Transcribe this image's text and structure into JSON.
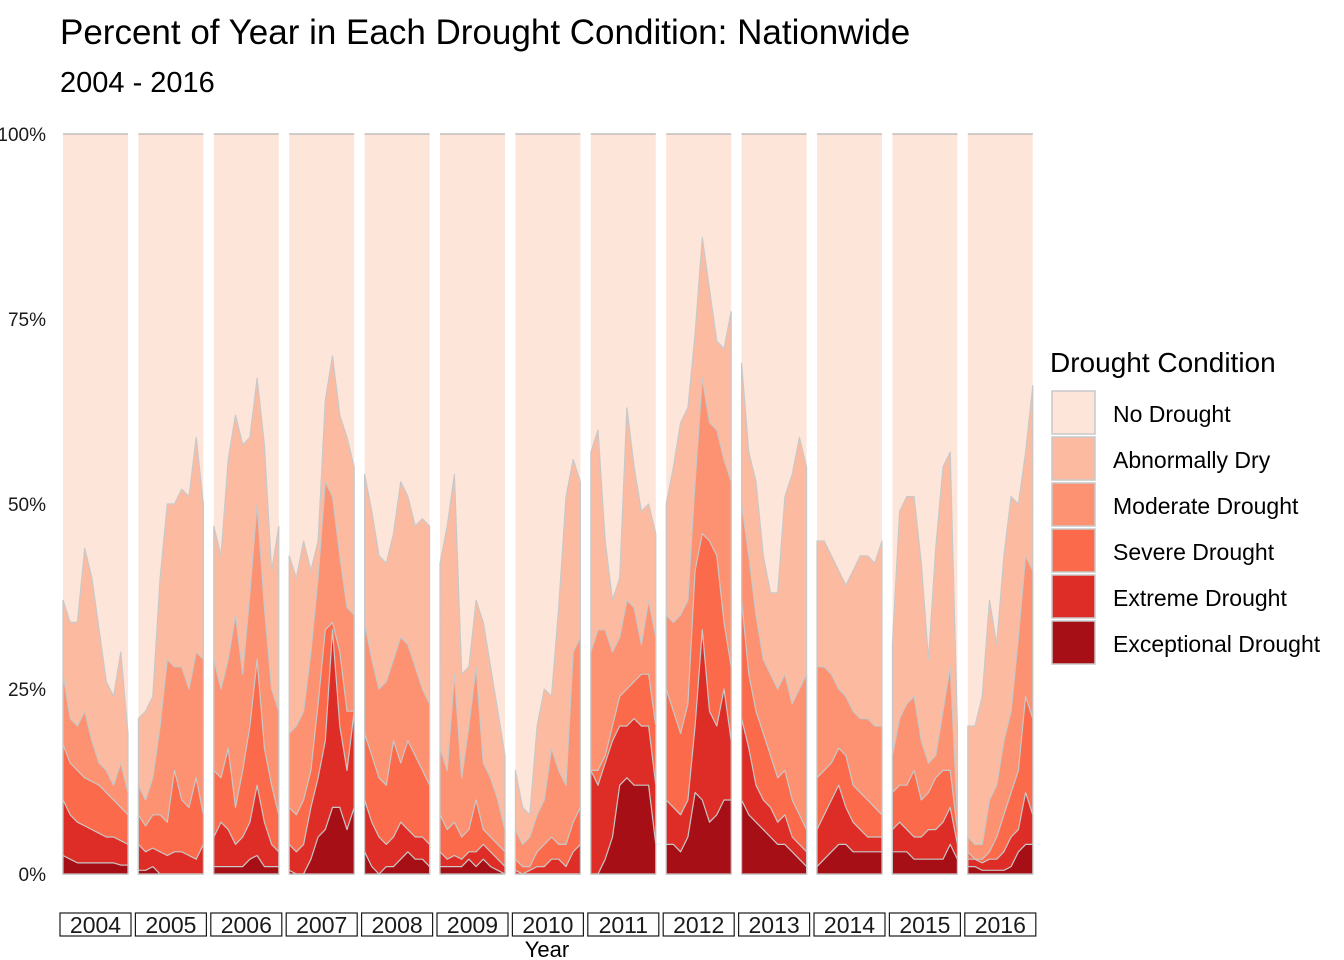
{
  "chart_data": {
    "type": "area",
    "title": "Percent of Year in Each Drought Condition: Nationwide",
    "subtitle": "2004 - 2016",
    "xlabel": "Year",
    "ylabel": "",
    "ylim": [
      0,
      1
    ],
    "y_ticks": [
      "0%",
      "25%",
      "50%",
      "75%",
      "100%"
    ],
    "grid": false,
    "legend_position": "right",
    "legend_title": "Drought Condition",
    "stacked": true,
    "facet_by": "year",
    "years": [
      "2004",
      "2005",
      "2006",
      "2007",
      "2008",
      "2009",
      "2010",
      "2011",
      "2012",
      "2013",
      "2014",
      "2015",
      "2016"
    ],
    "series": [
      {
        "name": "No Drought",
        "color": "#FEE5D9"
      },
      {
        "name": "Abnormally Dry",
        "color": "#FCBBA1"
      },
      {
        "name": "Moderate Drought",
        "color": "#FC9272"
      },
      {
        "name": "Severe Drought",
        "color": "#FB6A4A"
      },
      {
        "name": "Extreme Drought",
        "color": "#DE2D26"
      },
      {
        "name": "Exceptional Drought",
        "color": "#A50F15"
      }
    ],
    "panels": [
      {
        "year": "2004",
        "d4": [
          0.025,
          0.02,
          0.015,
          0.015,
          0.015,
          0.015,
          0.015,
          0.015,
          0.012,
          0.012
        ],
        "d3": [
          0.1,
          0.08,
          0.07,
          0.065,
          0.06,
          0.055,
          0.05,
          0.05,
          0.045,
          0.04
        ],
        "d2": [
          0.175,
          0.15,
          0.14,
          0.13,
          0.125,
          0.12,
          0.11,
          0.1,
          0.09,
          0.08
        ],
        "d1": [
          0.27,
          0.21,
          0.2,
          0.22,
          0.18,
          0.15,
          0.14,
          0.12,
          0.15,
          0.11
        ],
        "d0": [
          0.37,
          0.34,
          0.34,
          0.44,
          0.4,
          0.33,
          0.26,
          0.24,
          0.3,
          0.19
        ]
      },
      {
        "year": "2005",
        "d4": [
          0.005,
          0.005,
          0.01,
          0.0,
          0.0,
          0.0,
          0.0,
          0.0,
          0.0,
          0.0
        ],
        "d3": [
          0.04,
          0.03,
          0.035,
          0.03,
          0.025,
          0.03,
          0.03,
          0.025,
          0.02,
          0.04
        ],
        "d2": [
          0.08,
          0.065,
          0.08,
          0.08,
          0.07,
          0.14,
          0.1,
          0.09,
          0.13,
          0.08
        ],
        "d1": [
          0.12,
          0.1,
          0.13,
          0.2,
          0.29,
          0.28,
          0.28,
          0.25,
          0.3,
          0.29
        ],
        "d0": [
          0.21,
          0.22,
          0.24,
          0.4,
          0.5,
          0.5,
          0.52,
          0.51,
          0.59,
          0.5
        ]
      },
      {
        "year": "2006",
        "d4": [
          0.01,
          0.01,
          0.01,
          0.01,
          0.01,
          0.02,
          0.025,
          0.01,
          0.01,
          0.01
        ],
        "d3": [
          0.05,
          0.07,
          0.06,
          0.04,
          0.05,
          0.07,
          0.12,
          0.07,
          0.04,
          0.03
        ],
        "d2": [
          0.14,
          0.13,
          0.17,
          0.09,
          0.14,
          0.2,
          0.29,
          0.17,
          0.12,
          0.08
        ],
        "d1": [
          0.29,
          0.25,
          0.29,
          0.35,
          0.27,
          0.38,
          0.5,
          0.36,
          0.25,
          0.22
        ],
        "d0": [
          0.47,
          0.43,
          0.56,
          0.62,
          0.58,
          0.59,
          0.67,
          0.58,
          0.41,
          0.47
        ]
      },
      {
        "year": "2007",
        "d4": [
          0.005,
          0.0,
          0.0,
          0.02,
          0.05,
          0.06,
          0.09,
          0.09,
          0.06,
          0.09
        ],
        "d3": [
          0.04,
          0.03,
          0.04,
          0.09,
          0.13,
          0.18,
          0.33,
          0.2,
          0.14,
          0.22
        ],
        "d2": [
          0.09,
          0.08,
          0.1,
          0.14,
          0.23,
          0.33,
          0.34,
          0.3,
          0.22,
          0.22
        ],
        "d1": [
          0.19,
          0.2,
          0.22,
          0.3,
          0.4,
          0.53,
          0.51,
          0.43,
          0.36,
          0.35
        ],
        "d0": [
          0.43,
          0.4,
          0.45,
          0.41,
          0.45,
          0.64,
          0.7,
          0.62,
          0.59,
          0.55
        ]
      },
      {
        "year": "2008",
        "d4": [
          0.03,
          0.01,
          0.0,
          0.01,
          0.01,
          0.02,
          0.03,
          0.02,
          0.02,
          0.01
        ],
        "d3": [
          0.1,
          0.07,
          0.05,
          0.04,
          0.05,
          0.07,
          0.06,
          0.05,
          0.05,
          0.04
        ],
        "d2": [
          0.19,
          0.16,
          0.13,
          0.12,
          0.18,
          0.15,
          0.18,
          0.16,
          0.14,
          0.12
        ],
        "d1": [
          0.34,
          0.29,
          0.25,
          0.26,
          0.29,
          0.32,
          0.31,
          0.28,
          0.25,
          0.23
        ],
        "d0": [
          0.54,
          0.49,
          0.43,
          0.42,
          0.46,
          0.53,
          0.51,
          0.47,
          0.48,
          0.47
        ]
      },
      {
        "year": "2009",
        "d4": [
          0.01,
          0.01,
          0.01,
          0.01,
          0.02,
          0.01,
          0.02,
          0.01,
          0.005,
          0.0
        ],
        "d3": [
          0.03,
          0.02,
          0.025,
          0.02,
          0.03,
          0.03,
          0.04,
          0.03,
          0.02,
          0.01
        ],
        "d2": [
          0.08,
          0.06,
          0.07,
          0.05,
          0.06,
          0.1,
          0.06,
          0.05,
          0.04,
          0.03
        ],
        "d1": [
          0.17,
          0.14,
          0.27,
          0.13,
          0.2,
          0.28,
          0.15,
          0.13,
          0.1,
          0.06
        ],
        "d0": [
          0.42,
          0.47,
          0.54,
          0.27,
          0.28,
          0.37,
          0.34,
          0.28,
          0.22,
          0.16
        ]
      },
      {
        "year": "2010",
        "d4": [
          0.0,
          0.0,
          0.0,
          0.0,
          0.0,
          0.0,
          0.0,
          0.0,
          0.0,
          0.0
        ],
        "d3": [
          0.005,
          0.0,
          0.005,
          0.01,
          0.01,
          0.02,
          0.02,
          0.01,
          0.03,
          0.04
        ],
        "d2": [
          0.02,
          0.01,
          0.01,
          0.03,
          0.04,
          0.05,
          0.04,
          0.04,
          0.07,
          0.09
        ],
        "d1": [
          0.06,
          0.04,
          0.05,
          0.08,
          0.1,
          0.17,
          0.14,
          0.12,
          0.3,
          0.32
        ],
        "d0": [
          0.14,
          0.09,
          0.08,
          0.2,
          0.25,
          0.24,
          0.36,
          0.51,
          0.56,
          0.53
        ]
      },
      {
        "year": "2011",
        "d4": [
          0.0,
          0.0,
          0.02,
          0.05,
          0.12,
          0.13,
          0.12,
          0.12,
          0.12,
          0.04
        ],
        "d3": [
          0.14,
          0.12,
          0.15,
          0.18,
          0.2,
          0.2,
          0.21,
          0.2,
          0.2,
          0.12
        ],
        "d2": [
          0.14,
          0.14,
          0.16,
          0.2,
          0.24,
          0.25,
          0.26,
          0.27,
          0.27,
          0.2
        ],
        "d1": [
          0.3,
          0.33,
          0.33,
          0.3,
          0.32,
          0.37,
          0.36,
          0.31,
          0.37,
          0.32
        ],
        "d0": [
          0.57,
          0.6,
          0.45,
          0.37,
          0.4,
          0.63,
          0.55,
          0.49,
          0.5,
          0.46
        ]
      },
      {
        "year": "2012",
        "d4": [
          0.04,
          0.04,
          0.03,
          0.05,
          0.11,
          0.1,
          0.07,
          0.08,
          0.1,
          0.1
        ],
        "d3": [
          0.1,
          0.09,
          0.08,
          0.1,
          0.2,
          0.33,
          0.22,
          0.2,
          0.25,
          0.18
        ],
        "d2": [
          0.25,
          0.22,
          0.19,
          0.23,
          0.41,
          0.46,
          0.45,
          0.43,
          0.34,
          0.28
        ],
        "d1": [
          0.35,
          0.34,
          0.35,
          0.37,
          0.53,
          0.67,
          0.61,
          0.6,
          0.56,
          0.53
        ],
        "d0": [
          0.5,
          0.55,
          0.61,
          0.63,
          0.73,
          0.86,
          0.79,
          0.72,
          0.71,
          0.76
        ]
      },
      {
        "year": "2013",
        "d4": [
          0.1,
          0.08,
          0.07,
          0.06,
          0.05,
          0.04,
          0.04,
          0.03,
          0.02,
          0.01
        ],
        "d3": [
          0.21,
          0.17,
          0.12,
          0.1,
          0.09,
          0.07,
          0.08,
          0.05,
          0.04,
          0.03
        ],
        "d2": [
          0.37,
          0.27,
          0.22,
          0.19,
          0.16,
          0.13,
          0.14,
          0.1,
          0.08,
          0.06
        ],
        "d1": [
          0.5,
          0.43,
          0.35,
          0.29,
          0.27,
          0.25,
          0.27,
          0.23,
          0.25,
          0.27
        ],
        "d0": [
          0.69,
          0.57,
          0.53,
          0.43,
          0.38,
          0.38,
          0.51,
          0.54,
          0.59,
          0.55
        ]
      },
      {
        "year": "2014",
        "d4": [
          0.01,
          0.02,
          0.03,
          0.04,
          0.04,
          0.03,
          0.03,
          0.03,
          0.03,
          0.03
        ],
        "d3": [
          0.06,
          0.08,
          0.1,
          0.12,
          0.09,
          0.07,
          0.06,
          0.05,
          0.05,
          0.05
        ],
        "d2": [
          0.13,
          0.14,
          0.15,
          0.17,
          0.16,
          0.12,
          0.11,
          0.1,
          0.09,
          0.08
        ],
        "d1": [
          0.28,
          0.28,
          0.27,
          0.25,
          0.24,
          0.22,
          0.21,
          0.21,
          0.2,
          0.2
        ],
        "d0": [
          0.45,
          0.45,
          0.43,
          0.41,
          0.39,
          0.41,
          0.43,
          0.43,
          0.42,
          0.45
        ]
      },
      {
        "year": "2015",
        "d4": [
          0.03,
          0.03,
          0.03,
          0.02,
          0.02,
          0.02,
          0.02,
          0.02,
          0.04,
          0.02
        ],
        "d3": [
          0.06,
          0.07,
          0.06,
          0.05,
          0.05,
          0.06,
          0.06,
          0.07,
          0.09,
          0.04
        ],
        "d2": [
          0.11,
          0.12,
          0.12,
          0.14,
          0.1,
          0.11,
          0.13,
          0.14,
          0.14,
          0.06
        ],
        "d1": [
          0.16,
          0.21,
          0.23,
          0.24,
          0.18,
          0.15,
          0.16,
          0.22,
          0.28,
          0.08
        ],
        "d0": [
          0.31,
          0.49,
          0.51,
          0.51,
          0.42,
          0.29,
          0.44,
          0.55,
          0.57,
          0.2
        ]
      },
      {
        "year": "2016",
        "d4": [
          0.01,
          0.01,
          0.005,
          0.005,
          0.005,
          0.005,
          0.01,
          0.03,
          0.04,
          0.04
        ],
        "d3": [
          0.02,
          0.02,
          0.015,
          0.02,
          0.02,
          0.03,
          0.05,
          0.06,
          0.11,
          0.08
        ],
        "d2": [
          0.03,
          0.02,
          0.02,
          0.03,
          0.05,
          0.08,
          0.11,
          0.14,
          0.24,
          0.21
        ],
        "d1": [
          0.05,
          0.04,
          0.04,
          0.1,
          0.12,
          0.18,
          0.22,
          0.32,
          0.43,
          0.41
        ],
        "d0": [
          0.2,
          0.2,
          0.24,
          0.37,
          0.31,
          0.43,
          0.51,
          0.5,
          0.57,
          0.66
        ]
      }
    ]
  }
}
